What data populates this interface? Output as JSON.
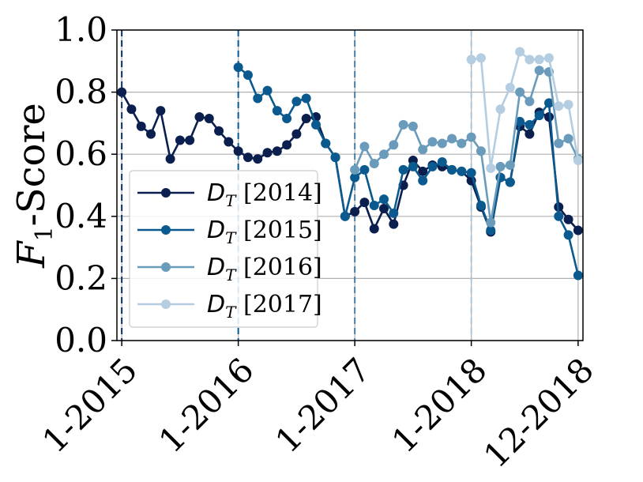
{
  "chart_data": {
    "type": "line",
    "ylabel": "F1-Score",
    "ylabel_main": "F",
    "ylabel_sub": "1",
    "ylabel_rest": "-Score",
    "ylim": [
      0.0,
      1.0
    ],
    "yticks": [
      0.0,
      0.2,
      0.4,
      0.6,
      0.8,
      1.0
    ],
    "ytick_labels": [
      "0.0",
      "0.2",
      "0.4",
      "0.6",
      "0.8",
      "1.0"
    ],
    "xlim": [
      -0.5,
      47.5
    ],
    "xticks": [
      0,
      12,
      24,
      36,
      47
    ],
    "xtick_labels": [
      "1-2015",
      "1-2016",
      "1-2017",
      "1-2018",
      "12-2018"
    ],
    "grid": "horizontal",
    "legend_position": "lower-left",
    "vertical_lines": [
      {
        "x": 0,
        "color": "#08306b"
      },
      {
        "x": 12,
        "color": "#08589e"
      },
      {
        "x": 24,
        "color": "#4a7fa5"
      },
      {
        "x": 36,
        "color": "#a8c4da"
      }
    ],
    "series": [
      {
        "name": "D_T [2014]",
        "legend_main": "D",
        "legend_sub": "T",
        "legend_rest": " [2014]",
        "color": "#0b1f4f",
        "start": 0,
        "values": [
          0.8,
          0.745,
          0.69,
          0.665,
          0.74,
          0.585,
          0.645,
          0.645,
          0.72,
          0.715,
          0.675,
          0.64,
          0.61,
          0.59,
          0.585,
          0.605,
          0.61,
          0.63,
          0.665,
          0.715,
          0.72,
          0.635,
          0.59,
          0.4,
          0.415,
          0.445,
          0.36,
          0.425,
          0.375,
          0.5,
          0.58,
          0.545,
          0.565,
          0.56,
          0.55,
          0.545,
          0.515,
          0.43,
          0.35,
          0.525,
          0.51,
          0.69,
          0.665,
          0.735,
          0.72,
          0.43,
          0.39,
          0.355
        ]
      },
      {
        "name": "D_T [2015]",
        "legend_main": "D",
        "legend_sub": "T",
        "legend_rest": " [2015]",
        "color": "#0b5a8f",
        "start": 12,
        "values": [
          0.88,
          0.855,
          0.78,
          0.805,
          0.74,
          0.715,
          0.77,
          0.78,
          0.695,
          0.635,
          0.59,
          0.4,
          0.525,
          0.55,
          0.435,
          0.455,
          0.41,
          0.55,
          0.56,
          0.515,
          0.56,
          0.575,
          0.55,
          0.545,
          0.54,
          0.435,
          0.355,
          0.525,
          0.51,
          0.705,
          0.695,
          0.725,
          0.765,
          0.4,
          0.34,
          0.21
        ]
      },
      {
        "name": "D_T [2016]",
        "legend_main": "D",
        "legend_sub": "T",
        "legend_rest": " [2016]",
        "color": "#6a9bbb",
        "start": 24,
        "values": [
          0.55,
          0.625,
          0.57,
          0.6,
          0.63,
          0.695,
          0.69,
          0.615,
          0.64,
          0.635,
          0.65,
          0.635,
          0.655,
          0.61,
          0.38,
          0.56,
          0.565,
          0.8,
          0.77,
          0.87,
          0.865,
          0.635,
          0.65,
          0.585
        ]
      },
      {
        "name": "D_T [2017]",
        "legend_main": "D",
        "legend_sub": "T",
        "legend_rest": " [2017]",
        "color": "#b5cde0",
        "start": 36,
        "values": [
          0.905,
          0.91,
          0.555,
          0.745,
          0.815,
          0.93,
          0.905,
          0.905,
          0.91,
          0.755,
          0.76,
          0.58
        ]
      }
    ]
  }
}
